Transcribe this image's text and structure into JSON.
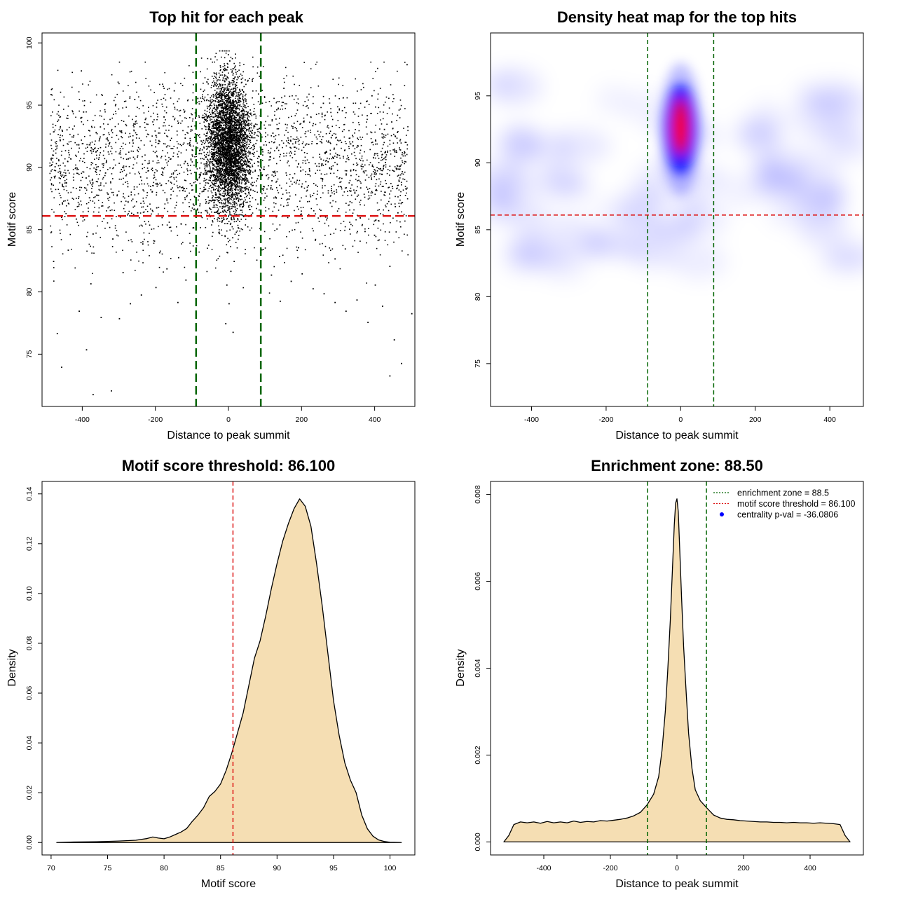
{
  "chart_data": [
    {
      "id": "scatter",
      "type": "scatter",
      "title": "Top hit for each peak",
      "xlabel": "Distance to peak summit",
      "ylabel": "Motif score",
      "xlim": [
        -510,
        510
      ],
      "ylim": [
        70.8,
        100.8
      ],
      "xticks": [
        -400,
        -200,
        0,
        200,
        400
      ],
      "yticks": [
        75,
        80,
        85,
        90,
        95,
        100
      ],
      "hlines": [
        {
          "y": 86.1,
          "color": "#dd1111",
          "style": "dashed"
        }
      ],
      "vlines": [
        {
          "x": -88.5,
          "color": "#006400",
          "style": "dashed"
        },
        {
          "x": 88.5,
          "color": "#006400",
          "style": "dashed"
        }
      ],
      "points": [
        [
          -487,
          95.9
        ],
        [
          -476,
          90.1
        ],
        [
          -456,
          87.2
        ],
        [
          -440,
          83.4
        ],
        [
          -425,
          92.6
        ],
        [
          -404,
          97.8
        ],
        [
          -391,
          89.2
        ],
        [
          -372,
          84.7
        ],
        [
          -352,
          93.3
        ],
        [
          -331,
          87.9
        ],
        [
          -310,
          95.1
        ],
        [
          -290,
          81.6
        ],
        [
          -271,
          90.8
        ],
        [
          -250,
          86.4
        ],
        [
          -229,
          93.9
        ],
        [
          -210,
          88.1
        ],
        [
          -190,
          83.2
        ],
        [
          -171,
          91.7
        ],
        [
          -150,
          96.2
        ],
        [
          -131,
          85.5
        ],
        [
          -112,
          90.2
        ],
        [
          -98,
          87.1
        ],
        [
          -480,
          82.5
        ],
        [
          -462,
          92.2
        ],
        [
          -445,
          88.8
        ],
        [
          -418,
          85.9
        ],
        [
          -398,
          94.5
        ],
        [
          -378,
          80.7
        ],
        [
          -360,
          91.4
        ],
        [
          -338,
          89.6
        ],
        [
          -318,
          84.3
        ],
        [
          -296,
          92.9
        ],
        [
          -277,
          88.5
        ],
        [
          -258,
          95.5
        ],
        [
          -236,
          83.9
        ],
        [
          -218,
          90.4
        ],
        [
          -198,
          86.8
        ],
        [
          -178,
          94.1
        ],
        [
          -158,
          89.3
        ],
        [
          -138,
          82.8
        ],
        [
          -120,
          92.4
        ],
        [
          -102,
          88.6
        ],
        [
          -470,
          76.7
        ],
        [
          -458,
          74.0
        ],
        [
          -410,
          78.5
        ],
        [
          -390,
          75.4
        ],
        [
          -372,
          71.8
        ],
        [
          -350,
          78.0
        ],
        [
          -322,
          72.1
        ],
        [
          -300,
          77.9
        ],
        [
          -270,
          79.1
        ],
        [
          -240,
          79.8
        ],
        [
          -200,
          80.4
        ],
        [
          -170,
          81.9
        ],
        [
          -140,
          79.2
        ],
        [
          -118,
          81.0
        ],
        [
          487,
          98.3
        ],
        [
          474,
          89.7
        ],
        [
          455,
          86.9
        ],
        [
          440,
          82.1
        ],
        [
          425,
          93.1
        ],
        [
          404,
          88.2
        ],
        [
          391,
          95.8
        ],
        [
          372,
          84.9
        ],
        [
          352,
          91.8
        ],
        [
          331,
          87.3
        ],
        [
          310,
          94.6
        ],
        [
          290,
          82.7
        ],
        [
          271,
          90.5
        ],
        [
          250,
          86.1
        ],
        [
          229,
          93.4
        ],
        [
          210,
          88.9
        ],
        [
          190,
          83.6
        ],
        [
          171,
          91.2
        ],
        [
          150,
          96.4
        ],
        [
          131,
          85.1
        ],
        [
          112,
          90.9
        ],
        [
          98,
          87.6
        ],
        [
          480,
          91.3
        ],
        [
          462,
          86.4
        ],
        [
          445,
          93.7
        ],
        [
          418,
          89.5
        ],
        [
          398,
          84.6
        ],
        [
          378,
          94.2
        ],
        [
          360,
          88.4
        ],
        [
          338,
          92.1
        ],
        [
          318,
          83.5
        ],
        [
          296,
          90.3
        ],
        [
          277,
          87.2
        ],
        [
          258,
          95.2
        ],
        [
          236,
          84.2
        ],
        [
          218,
          91.9
        ],
        [
          198,
          86.3
        ],
        [
          178,
          93.6
        ],
        [
          158,
          88.0
        ],
        [
          138,
          82.9
        ],
        [
          120,
          92.8
        ],
        [
          102,
          89.4
        ],
        [
          472,
          74.3
        ],
        [
          452,
          76.2
        ],
        [
          440,
          73.3
        ],
        [
          420,
          78.9
        ],
        [
          400,
          80.6
        ],
        [
          380,
          77.6
        ],
        [
          350,
          79.4
        ],
        [
          320,
          78.5
        ],
        [
          290,
          79.2
        ],
        [
          260,
          79.9
        ],
        [
          230,
          80.3
        ],
        [
          200,
          81.5
        ],
        [
          170,
          80.9
        ],
        [
          140,
          79.3
        ],
        [
          116,
          81.4
        ],
        [
          500,
          78.3
        ]
      ],
      "points_core": [
        [
          0,
          92.0
        ],
        [
          -10,
          94.3
        ],
        [
          8,
          90.1
        ],
        [
          -5,
          88.2
        ],
        [
          12,
          96.1
        ],
        [
          -18,
          91.5
        ],
        [
          3,
          93.7
        ],
        [
          20,
          89.4
        ],
        [
          -25,
          95.0
        ],
        [
          15,
          87.3
        ],
        [
          -8,
          97.2
        ],
        [
          6,
          85.9
        ],
        [
          -30,
          90.6
        ],
        [
          28,
          92.9
        ],
        [
          -2,
          99.1
        ],
        [
          10,
          84.4
        ],
        [
          -15,
          88.9
        ],
        [
          22,
          94.8
        ],
        [
          -40,
          92.2
        ],
        [
          35,
          90.3
        ],
        [
          -12,
          86.6
        ],
        [
          18,
          97.9
        ],
        [
          -4,
          83.2
        ],
        [
          42,
          91.4
        ],
        [
          -36,
          93.6
        ],
        [
          5,
          81.7
        ],
        [
          -22,
          95.7
        ],
        [
          30,
          88.1
        ],
        [
          -48,
          90.9
        ],
        [
          48,
          93.1
        ],
        [
          2,
          98.6
        ],
        [
          -6,
          80.6
        ],
        [
          14,
          82.5
        ],
        [
          -28,
          84.8
        ],
        [
          25,
          85.2
        ],
        [
          -55,
          89.7
        ],
        [
          55,
          91.9
        ],
        [
          0,
          79.1
        ],
        [
          -9,
          77.5
        ],
        [
          11,
          76.8
        ],
        [
          -60,
          94.1
        ],
        [
          62,
          89.2
        ],
        [
          -45,
          87.4
        ],
        [
          40,
          86.1
        ],
        [
          -33,
          97.0
        ],
        [
          36,
          96.3
        ],
        [
          -1,
          92.7
        ],
        [
          7,
          91.2
        ],
        [
          -14,
          93.1
        ],
        [
          16,
          90.5
        ]
      ]
    },
    {
      "id": "heatmap",
      "type": "heatmap",
      "title": "Density heat map for the top hits",
      "xlabel": "Distance to peak summit",
      "ylabel": "Motif score",
      "xlim": [
        -510,
        490
      ],
      "ylim": [
        71.8,
        99.7
      ],
      "xticks": [
        -400,
        -200,
        0,
        200,
        400
      ],
      "yticks": [
        75,
        80,
        85,
        90,
        95
      ],
      "hlines": [
        {
          "y": 86.1,
          "color": "#dd1111",
          "style": "dashed"
        }
      ],
      "vlines": [
        {
          "x": -88.5,
          "color": "#006400",
          "style": "dashed"
        },
        {
          "x": 88.5,
          "color": "#006400",
          "style": "dashed"
        }
      ],
      "colors": [
        "#ffffff",
        "#0000ff",
        "#ff0000"
      ]
    },
    {
      "id": "density_score",
      "type": "area",
      "title": "Motif score threshold: 86.100",
      "xlabel": "Motif score",
      "ylabel": "Density",
      "xlim": [
        69.2,
        102.2
      ],
      "ylim": [
        -0.005,
        0.145
      ],
      "xticks": [
        70,
        75,
        80,
        85,
        90,
        95,
        100
      ],
      "yticks": [
        0.0,
        0.02,
        0.04,
        0.06,
        0.08,
        0.1,
        0.12,
        0.14
      ],
      "ytick_labels": [
        "0.00",
        "0.02",
        "0.04",
        "0.06",
        "0.08",
        "0.10",
        "0.12",
        "0.14"
      ],
      "fill": "#f5deb3",
      "vlines": [
        {
          "x": 86.1,
          "color": "#dd1111",
          "style": "dashed"
        }
      ],
      "x": [
        70.5,
        72,
        74,
        76,
        77.5,
        78.5,
        79,
        79.5,
        80,
        80.5,
        81,
        81.5,
        82,
        82.5,
        83,
        83.5,
        84,
        84.5,
        85,
        85.5,
        86,
        86.5,
        87,
        87.5,
        88,
        88.5,
        89,
        89.5,
        90,
        90.5,
        91,
        91.5,
        92,
        92.5,
        93,
        93.5,
        94,
        94.5,
        95,
        95.5,
        96,
        96.5,
        97,
        97.5,
        98,
        98.5,
        99,
        99.5,
        100,
        101
      ],
      "y": [
        0,
        0.0002,
        0.0003,
        0.0006,
        0.0009,
        0.0016,
        0.0022,
        0.0018,
        0.0015,
        0.0022,
        0.0032,
        0.0042,
        0.0056,
        0.0085,
        0.011,
        0.014,
        0.0185,
        0.0205,
        0.0235,
        0.029,
        0.036,
        0.044,
        0.052,
        0.063,
        0.074,
        0.081,
        0.091,
        0.102,
        0.112,
        0.121,
        0.128,
        0.134,
        0.138,
        0.135,
        0.127,
        0.112,
        0.095,
        0.076,
        0.057,
        0.043,
        0.032,
        0.025,
        0.02,
        0.011,
        0.0055,
        0.0025,
        0.001,
        0.0004,
        0.0001,
        0
      ]
    },
    {
      "id": "density_distance",
      "type": "area",
      "title": "Enrichment zone: 88.50",
      "xlabel": "Distance to peak summit",
      "ylabel": "Density",
      "xlim": [
        -560,
        560
      ],
      "ylim": [
        -0.0003,
        0.0083
      ],
      "xticks": [
        -400,
        -200,
        0,
        200,
        400
      ],
      "yticks": [
        0.0,
        0.002,
        0.004,
        0.006,
        0.008
      ],
      "ytick_labels": [
        "0.000",
        "0.002",
        "0.004",
        "0.006",
        "0.008"
      ],
      "fill": "#f5deb3",
      "vlines": [
        {
          "x": -88.5,
          "color": "#006400",
          "style": "dashed"
        },
        {
          "x": 88.5,
          "color": "#006400",
          "style": "dashed"
        }
      ],
      "x": [
        -520,
        -505,
        -490,
        -470,
        -450,
        -430,
        -410,
        -390,
        -370,
        -350,
        -330,
        -310,
        -290,
        -270,
        -250,
        -230,
        -210,
        -190,
        -170,
        -150,
        -130,
        -110,
        -90,
        -70,
        -55,
        -45,
        -35,
        -28,
        -20,
        -14,
        -8,
        -4,
        0,
        4,
        8,
        14,
        20,
        28,
        35,
        45,
        55,
        70,
        90,
        110,
        130,
        150,
        170,
        190,
        210,
        230,
        250,
        270,
        290,
        310,
        330,
        350,
        370,
        390,
        410,
        430,
        450,
        470,
        490,
        505,
        520
      ],
      "y": [
        0,
        0.00015,
        0.0004,
        0.00046,
        0.00044,
        0.00046,
        0.00043,
        0.00047,
        0.00044,
        0.00046,
        0.00044,
        0.00048,
        0.00045,
        0.00047,
        0.00046,
        0.00049,
        0.00048,
        0.0005,
        0.00052,
        0.00055,
        0.0006,
        0.00068,
        0.00085,
        0.0011,
        0.0015,
        0.0021,
        0.003,
        0.0039,
        0.0051,
        0.0062,
        0.0073,
        0.0078,
        0.0079,
        0.0076,
        0.0068,
        0.0056,
        0.0045,
        0.0034,
        0.0025,
        0.0017,
        0.0012,
        0.00095,
        0.00078,
        0.00062,
        0.00055,
        0.00052,
        0.00051,
        0.00049,
        0.00048,
        0.00047,
        0.00046,
        0.00046,
        0.00045,
        0.00045,
        0.00044,
        0.00045,
        0.00044,
        0.00044,
        0.00043,
        0.00044,
        0.00043,
        0.00042,
        0.0004,
        0.00015,
        0
      ],
      "legend": [
        {
          "label": "enrichment zone = 88.5",
          "color": "#006400",
          "kind": "line"
        },
        {
          "label": "motif score threshold = 86.100",
          "color": "#dd1111",
          "kind": "line"
        },
        {
          "label": "centrality p-val = -36.0806",
          "color": "#0000ff",
          "kind": "point"
        }
      ]
    }
  ]
}
